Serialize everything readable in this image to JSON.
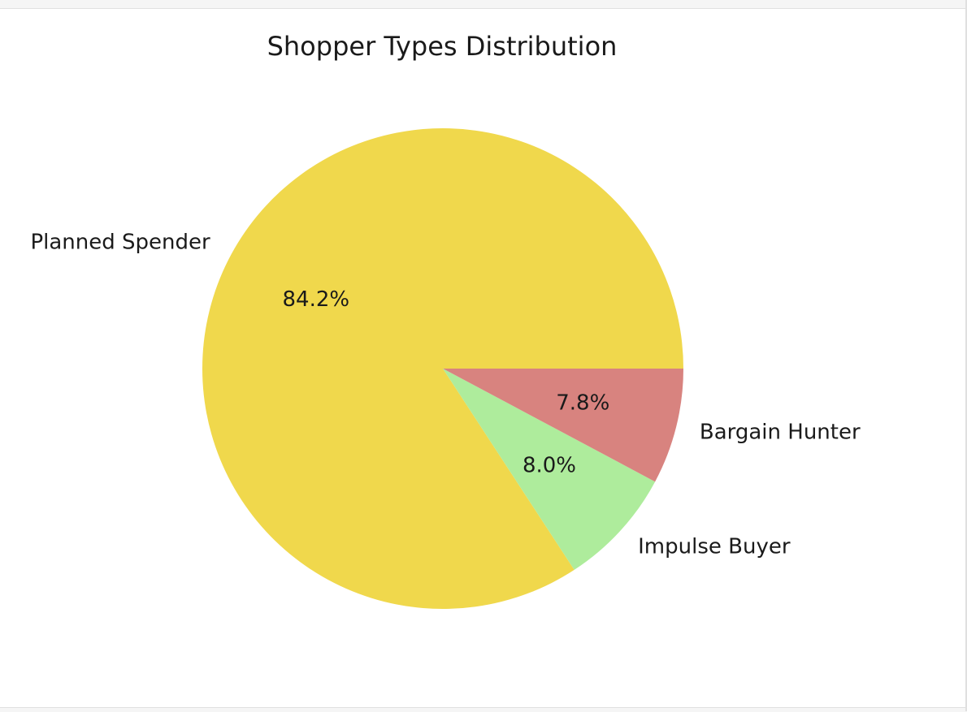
{
  "chart_data": {
    "type": "pie",
    "title": "Shopper Types Distribution",
    "slices": [
      {
        "label": "Planned Spender",
        "percent_label": "84.2%",
        "value": 84.2,
        "color": "#f0d84c"
      },
      {
        "label": "Impulse Buyer",
        "percent_label": "8.0%",
        "value": 8.0,
        "color": "#aeec9c"
      },
      {
        "label": "Bargain Hunter",
        "percent_label": "7.8%",
        "value": 7.8,
        "color": "#d8837f"
      }
    ],
    "start_angle": "0 degrees (3 o'clock)",
    "direction": "counterclockwise",
    "legend": "none"
  }
}
